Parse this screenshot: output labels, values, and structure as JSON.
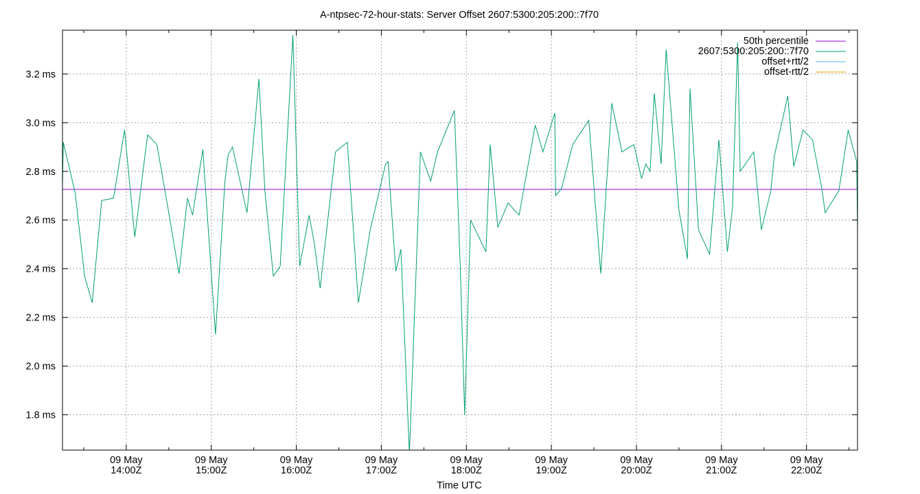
{
  "chart_data": {
    "type": "line",
    "title": "A-ntpsec-72-hour-stats: Server Offset 2607:5300:205:200::7f70",
    "xlabel": "Time UTC",
    "ylabel": "",
    "x_unit": "hours UTC (09 May)",
    "xlim": [
      13.25,
      22.6
    ],
    "ylim": [
      1.655,
      3.38
    ],
    "y_ticks": [
      1.8,
      2.0,
      2.2,
      2.4,
      2.6,
      2.8,
      3.0,
      3.2
    ],
    "y_tick_labels": [
      "1.8 ms",
      "2.0 ms",
      "2.2 ms",
      "2.4 ms",
      "2.6 ms",
      "2.8 ms",
      "3.0 ms",
      "3.2 ms"
    ],
    "x_ticks": [
      14,
      15,
      16,
      17,
      18,
      19,
      20,
      21,
      22
    ],
    "x_tick_labels": [
      {
        "date": "09 May",
        "time": "14:00Z"
      },
      {
        "date": "09 May",
        "time": "15:00Z"
      },
      {
        "date": "09 May",
        "time": "16:00Z"
      },
      {
        "date": "09 May",
        "time": "17:00Z"
      },
      {
        "date": "09 May",
        "time": "18:00Z"
      },
      {
        "date": "09 May",
        "time": "19:00Z"
      },
      {
        "date": "09 May",
        "time": "20:00Z"
      },
      {
        "date": "09 May",
        "time": "21:00Z"
      },
      {
        "date": "09 May",
        "time": "22:00Z"
      }
    ],
    "x_minor_ticks": [
      13.5,
      14.5,
      15.5,
      16.5,
      17.5,
      18.5,
      19.5,
      20.5,
      21.5,
      22.5
    ],
    "grid": true,
    "legend_position": "top-right",
    "series": [
      {
        "name": "50th percentile",
        "color": "#9400d3",
        "x": [
          13.25,
          22.6
        ],
        "y": [
          2.726,
          2.726
        ]
      },
      {
        "name": "2607:5300:205:200::7f70",
        "color": "#009e73",
        "x": [
          13.25,
          13.26,
          13.4,
          13.51,
          13.6,
          13.71,
          13.85,
          13.98,
          14.1,
          14.25,
          14.36,
          14.49,
          14.62,
          14.72,
          14.78,
          14.9,
          15.05,
          15.16,
          15.2,
          15.25,
          15.42,
          15.56,
          15.63,
          15.73,
          15.81,
          15.96,
          16.04,
          16.15,
          16.21,
          16.28,
          16.46,
          16.6,
          16.73,
          16.87,
          17.05,
          17.08,
          17.17,
          17.23,
          17.33,
          17.46,
          17.58,
          17.62,
          17.66,
          17.86,
          17.93,
          17.98,
          18.05,
          18.23,
          18.28,
          18.37,
          18.49,
          18.62,
          18.81,
          18.9,
          19.04,
          19.05,
          19.12,
          19.25,
          19.44,
          19.58,
          19.71,
          19.83,
          19.97,
          20.06,
          20.11,
          20.16,
          20.21,
          20.29,
          20.35,
          20.5,
          20.6,
          20.63,
          20.73,
          20.86,
          20.97,
          21.07,
          21.13,
          21.19,
          21.22,
          21.38,
          21.47,
          21.58,
          21.62,
          21.78,
          21.85,
          21.96,
          22.07,
          22.18,
          22.22,
          22.38,
          22.49,
          22.59,
          22.6
        ],
        "y": [
          2.74,
          2.92,
          2.71,
          2.37,
          2.26,
          2.68,
          2.69,
          2.97,
          2.53,
          2.95,
          2.91,
          2.65,
          2.38,
          2.69,
          2.62,
          2.89,
          2.13,
          2.76,
          2.87,
          2.9,
          2.63,
          3.18,
          2.72,
          2.37,
          2.41,
          3.36,
          2.41,
          2.62,
          2.51,
          2.32,
          2.88,
          2.92,
          2.26,
          2.56,
          2.83,
          2.84,
          2.39,
          2.48,
          1.64,
          2.88,
          2.76,
          2.82,
          2.88,
          3.05,
          2.39,
          1.8,
          2.6,
          2.47,
          2.91,
          2.57,
          2.67,
          2.62,
          2.99,
          2.88,
          3.04,
          2.7,
          2.73,
          2.91,
          3.01,
          2.38,
          3.08,
          2.88,
          2.91,
          2.77,
          2.83,
          2.8,
          3.12,
          2.83,
          3.3,
          2.64,
          2.44,
          3.14,
          2.56,
          2.46,
          2.93,
          2.47,
          2.65,
          3.33,
          2.8,
          2.88,
          2.56,
          2.72,
          2.86,
          3.11,
          2.82,
          2.97,
          2.93,
          2.73,
          2.63,
          2.72,
          2.97,
          2.84,
          2.56
        ]
      },
      {
        "name": "offset+rtt/2",
        "color": "#56b4e9",
        "x": [],
        "y": []
      },
      {
        "name": "offset-rtt/2",
        "color": "#e69f00",
        "x": [],
        "y": []
      }
    ]
  }
}
